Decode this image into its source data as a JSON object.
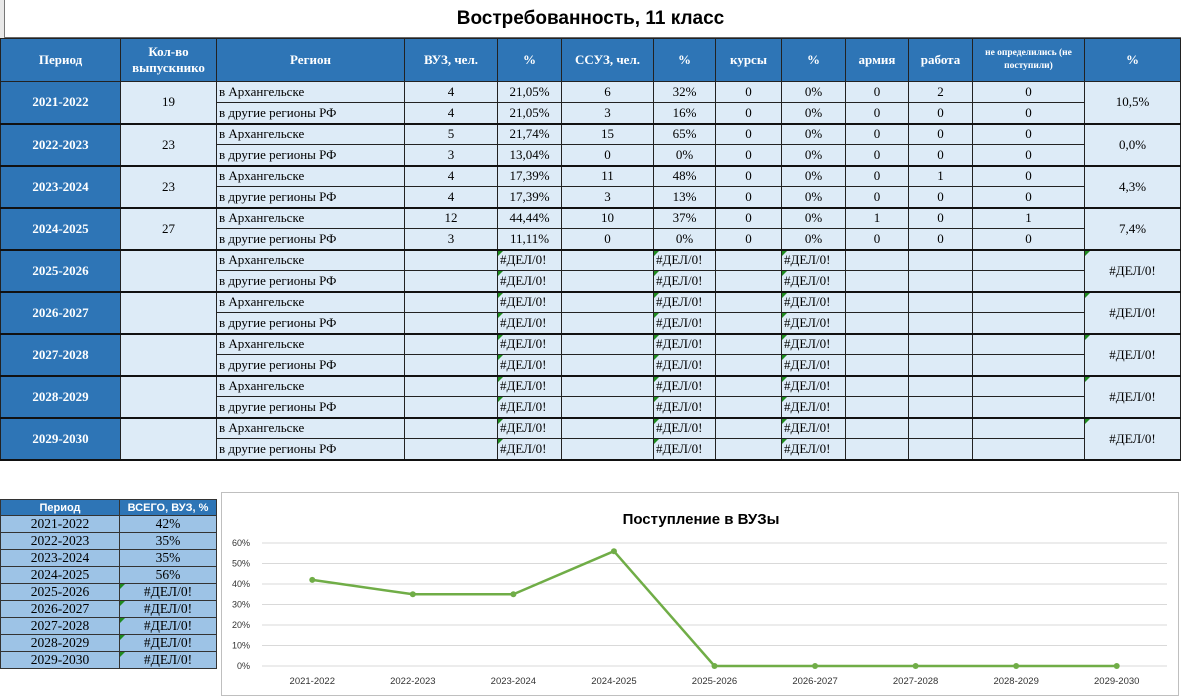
{
  "title": "Востребованность, 11 класс",
  "headers": [
    "Период",
    "Кол-во выпускнико",
    "Регион",
    "ВУЗ, чел.",
    "%",
    "ССУЗ, чел.",
    "%",
    "курсы",
    "%",
    "армия",
    "работа",
    "не определились (не поступили)",
    "%"
  ],
  "region_labels": [
    "в Архангельске",
    "в другие регионы РФ"
  ],
  "rows": [
    {
      "period": "2021-2022",
      "grads": "19",
      "pct": "10,5%",
      "a": [
        "4",
        "21,05%",
        "6",
        "32%",
        "0",
        "0%",
        "0",
        "2",
        "0"
      ],
      "b": [
        "4",
        "21,05%",
        "3",
        "16%",
        "0",
        "0%",
        "0",
        "0",
        "0"
      ]
    },
    {
      "period": "2022-2023",
      "grads": "23",
      "pct": "0,0%",
      "a": [
        "5",
        "21,74%",
        "15",
        "65%",
        "0",
        "0%",
        "0",
        "0",
        "0"
      ],
      "b": [
        "3",
        "13,04%",
        "0",
        "0%",
        "0",
        "0%",
        "0",
        "0",
        "0"
      ]
    },
    {
      "period": "2023-2024",
      "grads": "23",
      "pct": "4,3%",
      "a": [
        "4",
        "17,39%",
        "11",
        "48%",
        "0",
        "0%",
        "0",
        "1",
        "0"
      ],
      "b": [
        "4",
        "17,39%",
        "3",
        "13%",
        "0",
        "0%",
        "0",
        "0",
        "0"
      ]
    },
    {
      "period": "2024-2025",
      "grads": "27",
      "pct": "7,4%",
      "a": [
        "12",
        "44,44%",
        "10",
        "37%",
        "0",
        "0%",
        "1",
        "0",
        "1"
      ],
      "b": [
        "3",
        "11,11%",
        "0",
        "0%",
        "0",
        "0%",
        "0",
        "0",
        "0"
      ]
    },
    {
      "period": "2025-2026",
      "grads": "",
      "pct": "#ДЕЛ/0!",
      "a": [
        "",
        "#ДЕЛ/0!",
        "",
        "#ДЕЛ/0!",
        "",
        "#ДЕЛ/0!",
        "",
        "",
        ""
      ],
      "b": [
        "",
        "#ДЕЛ/0!",
        "",
        "#ДЕЛ/0!",
        "",
        "#ДЕЛ/0!",
        "",
        "",
        ""
      ]
    },
    {
      "period": "2026-2027",
      "grads": "",
      "pct": "#ДЕЛ/0!",
      "a": [
        "",
        "#ДЕЛ/0!",
        "",
        "#ДЕЛ/0!",
        "",
        "#ДЕЛ/0!",
        "",
        "",
        ""
      ],
      "b": [
        "",
        "#ДЕЛ/0!",
        "",
        "#ДЕЛ/0!",
        "",
        "#ДЕЛ/0!",
        "",
        "",
        ""
      ]
    },
    {
      "period": "2027-2028",
      "grads": "",
      "pct": "#ДЕЛ/0!",
      "a": [
        "",
        "#ДЕЛ/0!",
        "",
        "#ДЕЛ/0!",
        "",
        "#ДЕЛ/0!",
        "",
        "",
        ""
      ],
      "b": [
        "",
        "#ДЕЛ/0!",
        "",
        "#ДЕЛ/0!",
        "",
        "#ДЕЛ/0!",
        "",
        "",
        ""
      ]
    },
    {
      "period": "2028-2029",
      "grads": "",
      "pct": "#ДЕЛ/0!",
      "a": [
        "",
        "#ДЕЛ/0!",
        "",
        "#ДЕЛ/0!",
        "",
        "#ДЕЛ/0!",
        "",
        "",
        ""
      ],
      "b": [
        "",
        "#ДЕЛ/0!",
        "",
        "#ДЕЛ/0!",
        "",
        "#ДЕЛ/0!",
        "",
        "",
        ""
      ]
    },
    {
      "period": "2029-2030",
      "grads": "",
      "pct": "#ДЕЛ/0!",
      "a": [
        "",
        "#ДЕЛ/0!",
        "",
        "#ДЕЛ/0!",
        "",
        "#ДЕЛ/0!",
        "",
        "",
        ""
      ],
      "b": [
        "",
        "#ДЕЛ/0!",
        "",
        "#ДЕЛ/0!",
        "",
        "#ДЕЛ/0!",
        "",
        "",
        ""
      ]
    }
  ],
  "summary": {
    "headers": [
      "Период",
      "ВСЕГО, ВУЗ, %"
    ],
    "rows": [
      [
        "2021-2022",
        "42%"
      ],
      [
        "2022-2023",
        "35%"
      ],
      [
        "2023-2024",
        "35%"
      ],
      [
        "2024-2025",
        "56%"
      ],
      [
        "2025-2026",
        "#ДЕЛ/0!"
      ],
      [
        "2026-2027",
        "#ДЕЛ/0!"
      ],
      [
        "2027-2028",
        "#ДЕЛ/0!"
      ],
      [
        "2028-2029",
        "#ДЕЛ/0!"
      ],
      [
        "2029-2030",
        "#ДЕЛ/0!"
      ]
    ]
  },
  "colors": {
    "header_blue": "#2e75b6",
    "cell_light": "#ddebf7",
    "summary_cell": "#9dc3e6",
    "line": "#70ad47",
    "error_marker": "#1e8a1e"
  },
  "chart_data": {
    "type": "line",
    "title": "Поступление в ВУЗы",
    "categories": [
      "2021-2022",
      "2022-2023",
      "2023-2024",
      "2024-2025",
      "2025-2026",
      "2026-2027",
      "2027-2028",
      "2028-2029",
      "2029-2030"
    ],
    "values": [
      42,
      35,
      35,
      56,
      0,
      0,
      0,
      0,
      0
    ],
    "ylim": [
      0,
      60
    ],
    "yticks": [
      "0%",
      "10%",
      "20%",
      "30%",
      "40%",
      "50%",
      "60%"
    ],
    "grid": true,
    "color": "#70ad47"
  }
}
